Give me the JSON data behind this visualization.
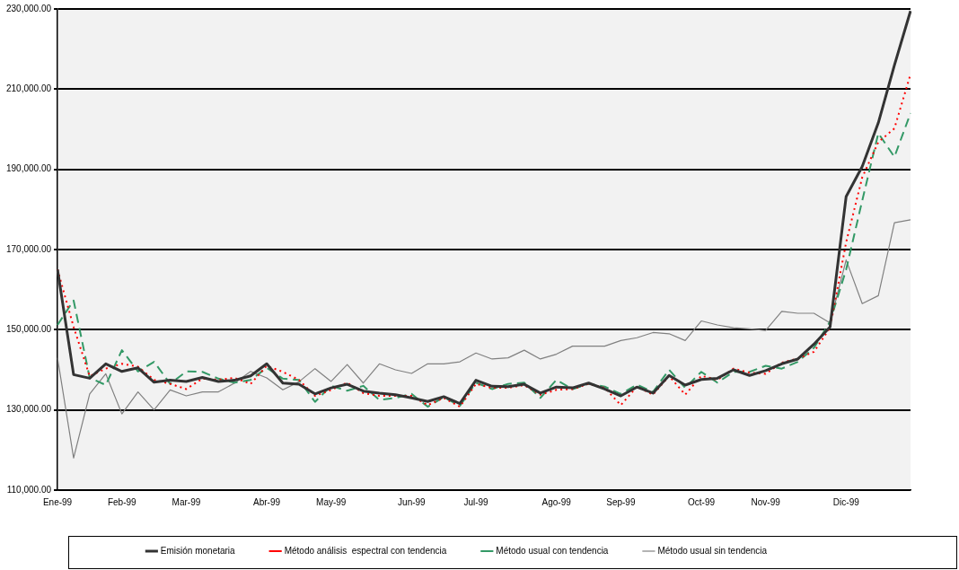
{
  "chart_data": {
    "type": "line",
    "categories": [
      "Ene-99",
      null,
      null,
      null,
      "Feb-99",
      null,
      null,
      null,
      "Mar-99",
      null,
      null,
      null,
      null,
      "Abr-99",
      null,
      null,
      null,
      "May-99",
      null,
      null,
      null,
      null,
      "Jun-99",
      null,
      null,
      null,
      "Jul-99",
      null,
      null,
      null,
      null,
      "Ago-99",
      null,
      null,
      null,
      "Sep-99",
      null,
      null,
      null,
      null,
      "Oct-99",
      null,
      null,
      null,
      "Nov-99",
      null,
      null,
      null,
      null,
      "Dic-99",
      null,
      null,
      null,
      null
    ],
    "ylim": [
      110000,
      230000
    ],
    "yticks": [
      {
        "value": 110000,
        "label": "110,000.00"
      },
      {
        "value": 130000,
        "label": "130,000.00"
      },
      {
        "value": 150000,
        "label": "150,000.00"
      },
      {
        "value": 170000,
        "label": "170,000.00"
      },
      {
        "value": 190000,
        "label": "190,000.00"
      },
      {
        "value": 210000,
        "label": "210,000.00"
      },
      {
        "value": 230000,
        "label": "230,000.00"
      }
    ],
    "grid": "y",
    "legend": "bottom",
    "marker": "none",
    "series": [
      {
        "name": "Emisión monetaria",
        "color": "#333333",
        "line_style": "solid",
        "values": [
          165000,
          138800,
          137900,
          141500,
          139600,
          140500,
          136900,
          137400,
          137100,
          138100,
          137100,
          137400,
          138500,
          141500,
          136700,
          136400,
          134000,
          135500,
          136400,
          134700,
          134200,
          133800,
          133000,
          132100,
          133300,
          131600,
          137400,
          135900,
          135800,
          136400,
          134200,
          135700,
          135500,
          136700,
          135200,
          133500,
          135700,
          134200,
          138600,
          136200,
          137600,
          137900,
          140000,
          138600,
          139800,
          141500,
          142700,
          146400,
          150700,
          183200,
          190700,
          201600,
          216000,
          229500
        ]
      },
      {
        "name": "Método análisis  espectral con tendencia",
        "color": "#ff0000",
        "line_style": "dotted",
        "values": [
          165000,
          150700,
          138400,
          140300,
          141500,
          140800,
          137500,
          136500,
          135200,
          137800,
          137500,
          138000,
          136500,
          141000,
          139500,
          137500,
          133500,
          135000,
          136800,
          134200,
          133500,
          133500,
          133500,
          131200,
          133000,
          130800,
          136500,
          135500,
          135500,
          136200,
          133800,
          135000,
          135200,
          136500,
          135500,
          131200,
          135800,
          133800,
          138500,
          133800,
          138500,
          137500,
          140300,
          139300,
          139000,
          141800,
          142800,
          144500,
          150500,
          171800,
          188000,
          196800,
          200200,
          213700
        ]
      },
      {
        "name": "Método usual con tendencia",
        "color": "#339966",
        "line_style": "dashed",
        "values": [
          151200,
          157300,
          138000,
          136200,
          144900,
          139600,
          142000,
          136500,
          139600,
          139500,
          137800,
          136800,
          137500,
          140500,
          137800,
          137500,
          132000,
          136000,
          134800,
          136000,
          132500,
          133000,
          134000,
          130800,
          133200,
          131000,
          136800,
          135200,
          136500,
          136800,
          133000,
          137500,
          135200,
          136500,
          135800,
          134000,
          136300,
          134500,
          140000,
          135500,
          139500,
          136800,
          139500,
          139500,
          141000,
          140300,
          142000,
          145500,
          152000,
          165000,
          182200,
          199000,
          193100,
          204000
        ]
      },
      {
        "name": "Método usual sin tendencia",
        "color": "#808080",
        "line_style": "solid",
        "values": [
          143000,
          118000,
          134000,
          139000,
          129000,
          134500,
          130000,
          135000,
          133500,
          134500,
          134500,
          136700,
          139600,
          138000,
          135000,
          137000,
          140300,
          137100,
          141300,
          136700,
          141500,
          140000,
          139100,
          141500,
          141500,
          142000,
          144200,
          142700,
          143000,
          144900,
          142700,
          143900,
          145900,
          145900,
          145900,
          147300,
          148000,
          149300,
          149000,
          147300,
          152200,
          151200,
          150500,
          150200,
          149800,
          154600,
          154100,
          154100,
          151700,
          167400,
          156500,
          158500,
          176700,
          177400
        ]
      }
    ]
  }
}
